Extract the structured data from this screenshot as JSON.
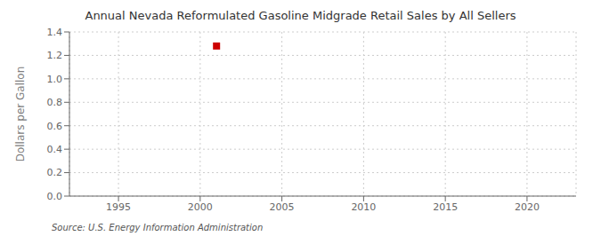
{
  "chart_data": {
    "type": "scatter",
    "title": "Annual Nevada Reformulated Gasoline Midgrade Retail Sales by All Sellers",
    "ylabel": "Dollars per Gallon",
    "annotations": [
      "Source: U.S. Energy Information Administration"
    ],
    "x": [
      2001
    ],
    "values": [
      1.28
    ],
    "color": "#cc0000",
    "marker": "square",
    "xlim": [
      1992,
      2023
    ],
    "xticks": [
      1995,
      2000,
      2005,
      2010,
      2015,
      2020
    ],
    "ylim": [
      0.0,
      1.4
    ],
    "yticks": [
      {
        "value": 0.0,
        "label": "0.0"
      },
      0.2,
      0.4,
      0.6,
      0.8,
      {
        "value": 1.0,
        "label": "1.0"
      },
      1.2,
      1.4
    ],
    "grid": true
  }
}
